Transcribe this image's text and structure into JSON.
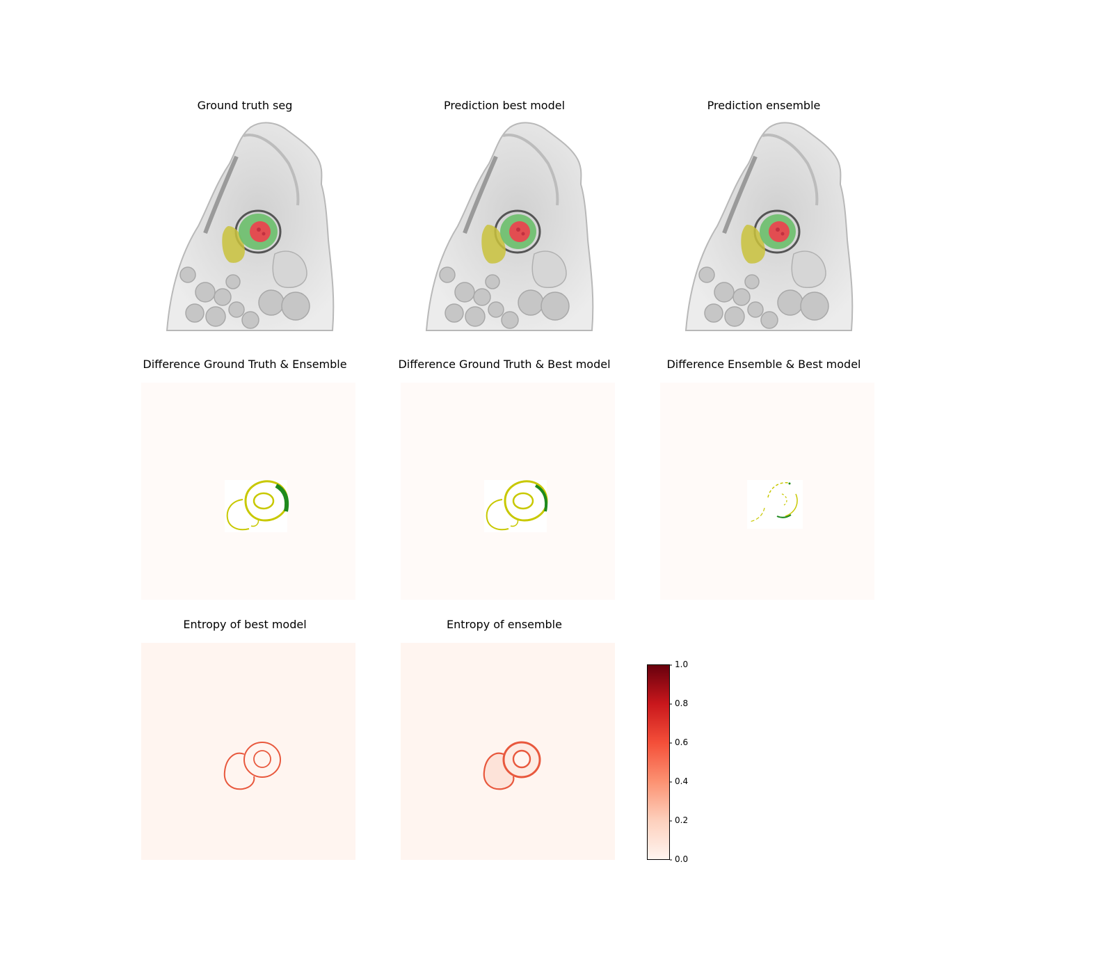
{
  "titles": {
    "row1": [
      "Ground truth seg",
      "Prediction best model",
      "Prediction ensemble"
    ],
    "row2": [
      "Difference Ground Truth & Ensemble",
      "Difference Ground Truth & Best model",
      "Difference Ensemble & Best model"
    ],
    "row3": [
      "Entropy of best model",
      "Entropy of ensemble"
    ]
  },
  "colorbar": {
    "ticks": [
      "1.0",
      "0.8",
      "0.6",
      "0.4",
      "0.2",
      "0.0"
    ],
    "range": [
      0.0,
      1.0
    ],
    "colormap": "Reds",
    "color_low": "#fff5f0",
    "color_high": "#67000d"
  },
  "colors": {
    "left_ventricle": "#e8474f",
    "myocardium": "#6cbf6c",
    "right_ventricle": "#c9c23c",
    "diff_green": "#1e8a1e",
    "diff_yellow": "#c8c800",
    "entropy_edge": "#e8583d"
  }
}
